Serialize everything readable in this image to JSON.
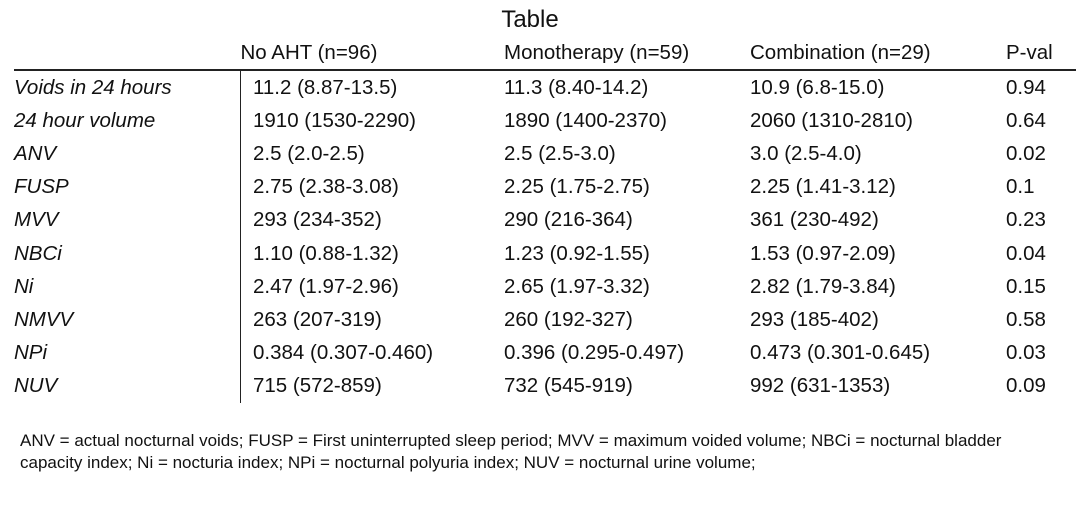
{
  "title": "Table",
  "table": {
    "headers": [
      "",
      "No AHT (n=96)",
      "Monotherapy (n=59)",
      "Combination (n=29)",
      "P-val"
    ],
    "rows": [
      {
        "label": "Voids in 24 hours",
        "cells": [
          "11.2 (8.87-13.5)",
          "11.3 (8.40-14.2)",
          "10.9 (6.8-15.0)",
          "0.94"
        ]
      },
      {
        "label": "24 hour volume",
        "cells": [
          "1910 (1530-2290)",
          "1890 (1400-2370)",
          "2060 (1310-2810)",
          "0.64"
        ]
      },
      {
        "label": "ANV",
        "cells": [
          "2.5 (2.0-2.5)",
          "2.5 (2.5-3.0)",
          "3.0 (2.5-4.0)",
          "0.02"
        ]
      },
      {
        "label": "FUSP",
        "cells": [
          "2.75 (2.38-3.08)",
          "2.25 (1.75-2.75)",
          "2.25 (1.41-3.12)",
          "0.1"
        ]
      },
      {
        "label": "MVV",
        "cells": [
          "293 (234-352)",
          "290 (216-364)",
          "361 (230-492)",
          "0.23"
        ]
      },
      {
        "label": "NBCi",
        "cells": [
          "1.10 (0.88-1.32)",
          "1.23 (0.92-1.55)",
          "1.53 (0.97-2.09)",
          "0.04"
        ]
      },
      {
        "label": "Ni",
        "cells": [
          "2.47 (1.97-2.96)",
          "2.65 (1.97-3.32)",
          "2.82 (1.79-3.84)",
          "0.15"
        ]
      },
      {
        "label": "NMVV",
        "cells": [
          "263 (207-319)",
          "260 (192-327)",
          "293 (185-402)",
          "0.58"
        ]
      },
      {
        "label": "NPi",
        "cells": [
          "0.384 (0.307-0.460)",
          "0.396 (0.295-0.497)",
          "0.473 (0.301-0.645)",
          "0.03"
        ]
      },
      {
        "label": "NUV",
        "cells": [
          "715 (572-859)",
          "732 (545-919)",
          "992 (631-1353)",
          "0.09"
        ]
      }
    ]
  },
  "footnote": "ANV = actual nocturnal voids; FUSP = First uninterrupted sleep period; MVV = maximum voided volume; NBCi = nocturnal bladder capacity index; Ni = nocturia index; NPi = nocturnal polyuria index; NUV = nocturnal urine volume;"
}
